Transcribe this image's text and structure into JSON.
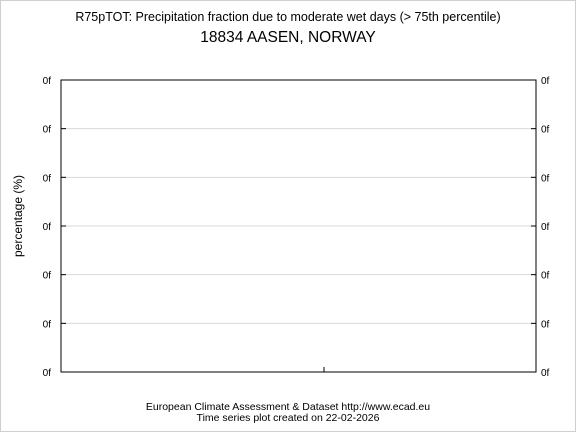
{
  "chart_data": {
    "type": "line",
    "title": "R75pTOT: Precipitation fraction due to moderate wet days (> 75th percentile)",
    "subtitle": "18834 AASEN, NORWAY",
    "xlabel": "",
    "ylabel": "percentage (%)",
    "y_tick_labels": [
      "0f",
      "0f",
      "0f",
      "0f",
      "0f",
      "0f",
      "0f"
    ],
    "series": [],
    "grid": true
  },
  "footer": {
    "line1": "European Climate Assessment & Dataset  http://www.ecad.eu",
    "line2": "Time series plot created on 22-02-2026"
  }
}
